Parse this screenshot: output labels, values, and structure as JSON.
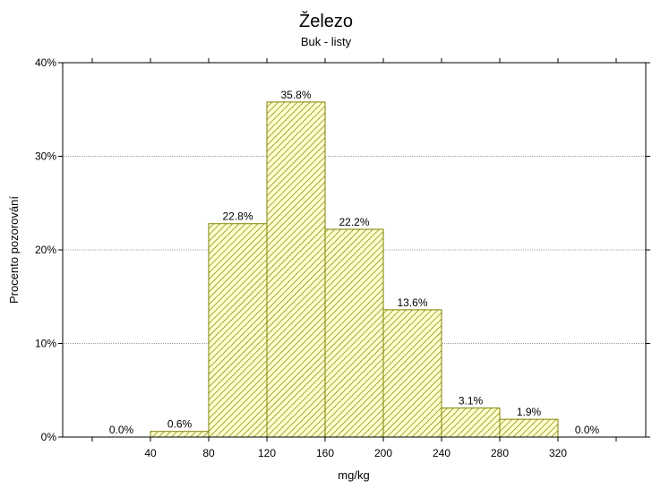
{
  "chart_data": {
    "type": "bar",
    "title": "Železo",
    "subtitle": "Buk - listy",
    "xlabel": "mg/kg",
    "ylabel": "Procento pozorování",
    "bin_edges": [
      40,
      80,
      120,
      160,
      200,
      240,
      280,
      320
    ],
    "xlim": [
      0,
      360
    ],
    "bins": [
      {
        "from": 0,
        "to": 40,
        "value": 0.0,
        "label": "0.0%"
      },
      {
        "from": 40,
        "to": 80,
        "value": 0.6,
        "label": "0.6%"
      },
      {
        "from": 80,
        "to": 120,
        "value": 22.8,
        "label": "22.8%"
      },
      {
        "from": 120,
        "to": 160,
        "value": 35.8,
        "label": "35.8%"
      },
      {
        "from": 160,
        "to": 200,
        "value": 22.2,
        "label": "22.2%"
      },
      {
        "from": 200,
        "to": 240,
        "value": 13.6,
        "label": "13.6%"
      },
      {
        "from": 240,
        "to": 280,
        "value": 3.1,
        "label": "3.1%"
      },
      {
        "from": 280,
        "to": 320,
        "value": 1.9,
        "label": "1.9%"
      },
      {
        "from": 320,
        "to": 360,
        "value": 0.0,
        "label": "0.0%"
      }
    ],
    "ylim": [
      0,
      40
    ],
    "y_ticks": [
      0,
      10,
      20,
      30,
      40
    ],
    "y_tick_labels": [
      "0%",
      "10%",
      "20%",
      "30%",
      "40%"
    ],
    "grid": true,
    "colors": {
      "bar_fill": "#ffffd0",
      "bar_stroke": "#808000",
      "hatch": "#808000",
      "grid": "#a0a0a0",
      "axis": "#000000",
      "background": "#ffffff"
    }
  }
}
